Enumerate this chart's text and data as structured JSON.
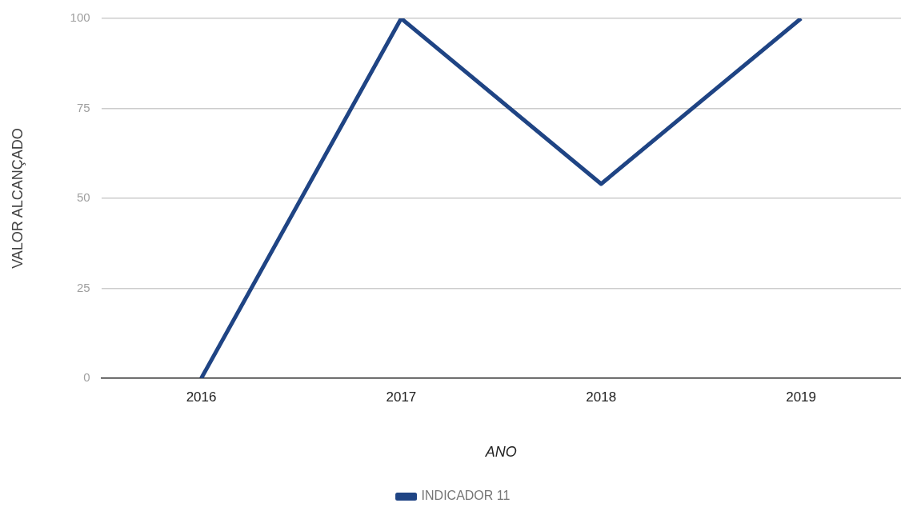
{
  "chart_data": {
    "type": "line",
    "xlabel": "ANO",
    "ylabel": "VALOR ALCANÇADO",
    "categories": [
      "2016",
      "2017",
      "2018",
      "2019"
    ],
    "series": [
      {
        "name": "INDICADOR 11",
        "color": "#1f4484",
        "values": [
          0,
          100,
          54,
          100
        ]
      }
    ],
    "ylim": [
      0,
      100
    ],
    "yticks": [
      0,
      25,
      50,
      75,
      100
    ],
    "grid": "y",
    "legend": "bottom",
    "marker": "none",
    "line_style": "solid"
  }
}
